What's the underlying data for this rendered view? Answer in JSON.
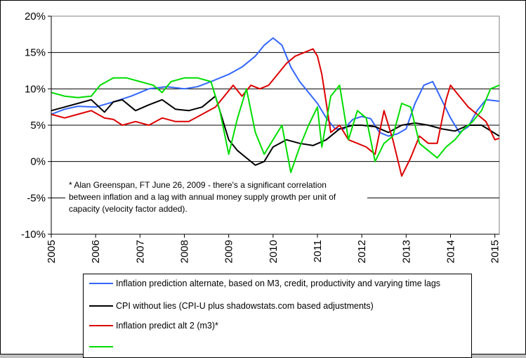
{
  "chart_data": {
    "type": "line",
    "ylim": [
      -10,
      20
    ],
    "xlim": [
      2005,
      2015.1
    ],
    "y_ticks": [
      "20%",
      "15%",
      "10%",
      "5%",
      "0%",
      "-5%",
      "-10%"
    ],
    "y_tick_values": [
      20,
      15,
      10,
      5,
      0,
      -5,
      -10
    ],
    "x_ticks": [
      "2005",
      "2006",
      "2007",
      "2008",
      "2009",
      "2010",
      "2011",
      "2012",
      "2013",
      "2014",
      "2015"
    ],
    "x_tick_values": [
      2005,
      2006,
      2007,
      2008,
      2009,
      2010,
      2011,
      2012,
      2013,
      2014,
      2015
    ],
    "grid": "horizontal",
    "annotation": {
      "lines": [
        "* Alan Greenspan, FT June 26, 2009 - there's a significant correlation",
        "between inflation and a lag with annual money supply growth per unit of",
        "capacity (velocity factor added)."
      ]
    },
    "series": [
      {
        "name": "Inflation prediction alternate, based on M3, credit, productivity and varying time lags",
        "color": "#3366ff",
        "x": [
          2005.0,
          2005.3,
          2005.6,
          2006.0,
          2006.4,
          2006.8,
          2007.2,
          2007.6,
          2008.0,
          2008.3,
          2008.6,
          2009.0,
          2009.3,
          2009.6,
          2009.8,
          2010.0,
          2010.2,
          2010.4,
          2010.6,
          2010.8,
          2011.0,
          2011.2,
          2011.4,
          2011.6,
          2011.8,
          2012.0,
          2012.2,
          2012.4,
          2012.6,
          2012.8,
          2013.0,
          2013.2,
          2013.4,
          2013.6,
          2013.8,
          2014.0,
          2014.2,
          2014.4,
          2014.6,
          2014.8,
          2015.1
        ],
        "y": [
          6.5,
          7.2,
          7.6,
          7.5,
          8.2,
          9.0,
          10.0,
          10.3,
          10.0,
          10.3,
          11.0,
          12.0,
          13.0,
          14.5,
          16.0,
          17.0,
          16.0,
          13.0,
          11.0,
          9.5,
          8.0,
          6.0,
          4.5,
          4.5,
          5.8,
          6.2,
          5.9,
          4.0,
          3.5,
          3.8,
          4.5,
          8.0,
          10.5,
          11.0,
          8.5,
          6.0,
          4.0,
          4.8,
          7.0,
          8.5,
          8.3
        ]
      },
      {
        "name": "CPI without lies  (CPI-U plus shadowstats.com based adjustments)",
        "color": "#000000",
        "x": [
          2005.0,
          2005.3,
          2005.6,
          2005.9,
          2006.2,
          2006.4,
          2006.6,
          2006.9,
          2007.2,
          2007.5,
          2007.8,
          2008.1,
          2008.4,
          2008.7,
          2008.85,
          2009.0,
          2009.2,
          2009.4,
          2009.6,
          2009.8,
          2010.0,
          2010.3,
          2010.6,
          2010.9,
          2011.2,
          2011.5,
          2011.8,
          2012.0,
          2012.3,
          2012.6,
          2012.9,
          2013.2,
          2013.5,
          2013.8,
          2014.1,
          2014.4,
          2014.7,
          2015.1
        ],
        "y": [
          7.0,
          7.5,
          8.0,
          8.5,
          6.8,
          8.2,
          8.5,
          7.0,
          7.8,
          8.5,
          7.2,
          7.0,
          7.5,
          9.0,
          6.0,
          3.0,
          1.5,
          0.5,
          -0.5,
          0.0,
          2.0,
          3.0,
          2.5,
          2.2,
          3.0,
          4.5,
          5.0,
          5.0,
          4.8,
          4.0,
          5.0,
          5.3,
          5.0,
          4.5,
          4.2,
          5.0,
          5.0,
          3.5
        ]
      },
      {
        "name": "Inflation predict alt 2 (m3)*",
        "color": "#dd0000",
        "x": [
          2005.0,
          2005.3,
          2005.6,
          2005.9,
          2006.2,
          2006.4,
          2006.6,
          2006.9,
          2007.2,
          2007.5,
          2007.8,
          2008.1,
          2008.4,
          2008.7,
          2008.9,
          2009.1,
          2009.3,
          2009.5,
          2009.7,
          2009.9,
          2010.1,
          2010.3,
          2010.5,
          2010.7,
          2010.9,
          2011.0,
          2011.1,
          2011.3,
          2011.5,
          2011.7,
          2011.9,
          2012.1,
          2012.3,
          2012.5,
          2012.7,
          2012.9,
          2013.1,
          2013.3,
          2013.5,
          2013.7,
          2013.9,
          2014.0,
          2014.2,
          2014.4,
          2014.6,
          2014.8,
          2015.0,
          2015.1
        ],
        "y": [
          6.5,
          6.0,
          6.5,
          7.0,
          6.0,
          5.8,
          5.0,
          5.5,
          5.0,
          6.0,
          5.5,
          5.5,
          6.5,
          7.5,
          9.0,
          10.5,
          9.0,
          10.5,
          10.0,
          10.5,
          12.0,
          13.5,
          14.5,
          15.0,
          15.5,
          14.5,
          12.0,
          4.0,
          5.0,
          3.0,
          2.5,
          2.0,
          1.0,
          7.0,
          3.0,
          -2.0,
          0.5,
          3.5,
          2.5,
          2.5,
          8.5,
          10.5,
          9.0,
          7.5,
          6.5,
          5.5,
          3.0,
          3.2
        ]
      },
      {
        "name": "",
        "color": "#00dd00",
        "x": [
          2005.0,
          2005.3,
          2005.6,
          2005.9,
          2006.1,
          2006.4,
          2006.7,
          2007.0,
          2007.3,
          2007.5,
          2007.7,
          2008.0,
          2008.3,
          2008.6,
          2008.8,
          2009.0,
          2009.2,
          2009.4,
          2009.6,
          2009.8,
          2010.0,
          2010.2,
          2010.4,
          2010.6,
          2010.8,
          2011.0,
          2011.1,
          2011.3,
          2011.5,
          2011.7,
          2011.9,
          2012.1,
          2012.3,
          2012.5,
          2012.7,
          2012.9,
          2013.1,
          2013.3,
          2013.5,
          2013.7,
          2013.9,
          2014.1,
          2014.3,
          2014.5,
          2014.7,
          2014.9,
          2015.1
        ],
        "y": [
          9.5,
          9.0,
          8.8,
          9.0,
          10.5,
          11.5,
          11.5,
          11.0,
          10.5,
          9.5,
          11.0,
          11.5,
          11.5,
          11.0,
          7.0,
          1.0,
          6.0,
          10.0,
          4.0,
          1.0,
          3.0,
          5.0,
          -1.5,
          2.0,
          5.0,
          7.5,
          2.0,
          9.0,
          10.5,
          3.0,
          7.0,
          6.0,
          0.0,
          2.5,
          3.5,
          8.0,
          7.5,
          2.5,
          1.5,
          0.5,
          2.0,
          3.0,
          4.5,
          5.5,
          7.0,
          10.0,
          10.5
        ]
      }
    ]
  },
  "legend": {
    "items": [
      {
        "label": "Inflation prediction alternate, based on M3, credit, productivity and varying time lags",
        "color": "#3366ff"
      },
      {
        "label": "CPI without lies  (CPI-U plus shadowstats.com based adjustments)",
        "color": "#000000"
      },
      {
        "label": "Inflation predict alt 2 (m3)*",
        "color": "#dd0000"
      }
    ]
  }
}
